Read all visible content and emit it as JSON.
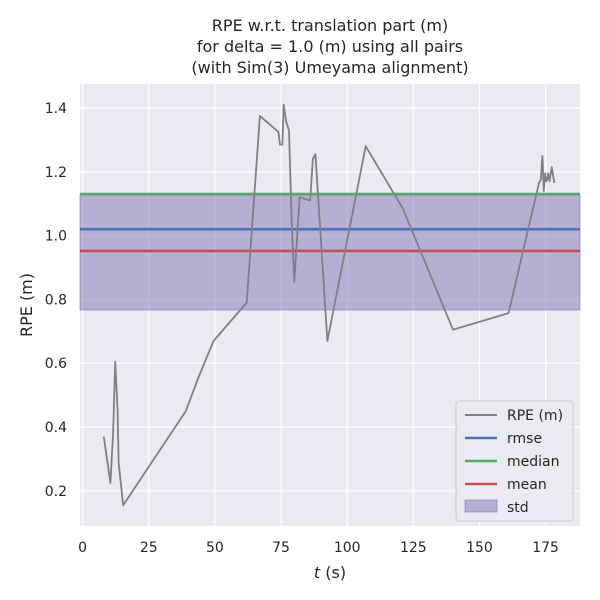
{
  "chart_data": {
    "type": "line",
    "title": [
      "RPE w.r.t. translation part (m)",
      "for delta = 1.0 (m) using all pairs",
      "(with Sim(3) Umeyama alignment)"
    ],
    "xlabel_var": "t",
    "xlabel_unit": " (s)",
    "ylabel": "RPE (m)",
    "xlim": [
      -1,
      188
    ],
    "ylim": [
      0.09,
      1.475
    ],
    "xticks": [
      0,
      25,
      50,
      75,
      100,
      125,
      150,
      175
    ],
    "yticks": [
      0.2,
      0.4,
      0.6,
      0.8,
      1.0,
      1.2,
      1.4
    ],
    "ytick_labels": [
      "0.2",
      "0.4",
      "0.6",
      "0.8",
      "1.0",
      "1.2",
      "1.4"
    ],
    "grid": true,
    "legend_position": "lower-right",
    "series": [
      {
        "name": "RPE (m)",
        "color": "#808080",
        "x": [
          8,
          10.5,
          11.5,
          12.3,
          13.2,
          13.6,
          15.3,
          39,
          44,
          49.5,
          62,
          67,
          74,
          74.6,
          75.5,
          76,
          77,
          78,
          79,
          80,
          82,
          86,
          87,
          88,
          92.5,
          107,
          121,
          140,
          161,
          172.5,
          173.2,
          173.8,
          174.3,
          174.8,
          175.2,
          175.6,
          176,
          176.5,
          177.3,
          178.3
        ],
        "y": [
          0.37,
          0.225,
          0.38,
          0.605,
          0.45,
          0.29,
          0.155,
          0.45,
          0.56,
          0.67,
          0.79,
          1.375,
          1.325,
          1.285,
          1.285,
          1.41,
          1.355,
          1.33,
          1.05,
          0.855,
          1.12,
          1.11,
          1.24,
          1.255,
          0.67,
          1.28,
          1.085,
          0.705,
          0.757,
          1.165,
          1.175,
          1.25,
          1.14,
          1.195,
          1.17,
          1.175,
          1.195,
          1.17,
          1.215,
          1.165
        ]
      },
      {
        "name": "rmse",
        "color": "#4c72b0",
        "value": 1.02
      },
      {
        "name": "median",
        "color": "#55a868",
        "value": 1.13
      },
      {
        "name": "mean",
        "color": "#c44e52",
        "value": 0.952
      },
      {
        "name": "std",
        "color": "#8172b3",
        "range": [
          0.767,
          1.127
        ]
      }
    ]
  },
  "colors": {
    "plot_background": "#eaeaf2",
    "grid": "#ffffff",
    "text": "#262626"
  }
}
